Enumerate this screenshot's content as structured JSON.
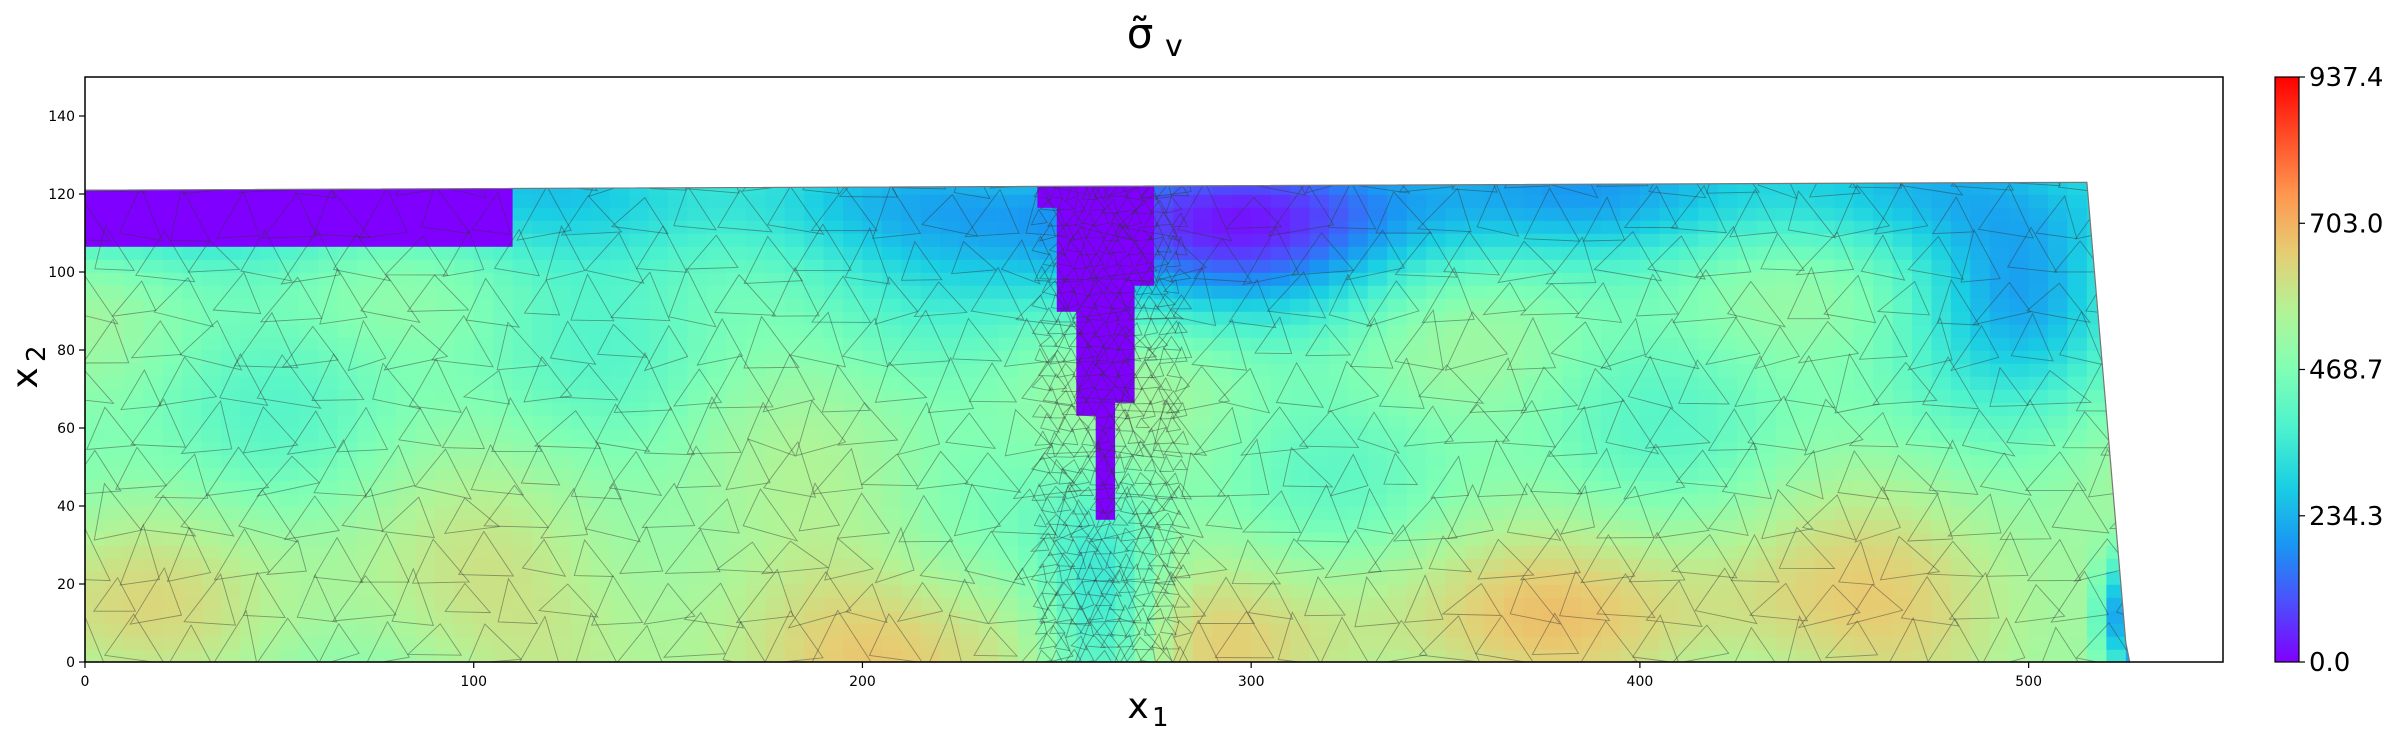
{
  "chart_data": {
    "type": "heatmap",
    "title": "σ̃",
    "title_subscript": "v",
    "xlabel": "x",
    "xlabel_subscript": "1",
    "ylabel": "x",
    "ylabel_subscript": "2",
    "xlim": [
      0,
      550
    ],
    "ylim": [
      0,
      150
    ],
    "x_ticks": [
      0,
      100,
      200,
      300,
      400,
      500
    ],
    "y_ticks": [
      0,
      20,
      40,
      60,
      80,
      100,
      120,
      140
    ],
    "colormap": "rainbow",
    "colorbar": {
      "min": 0.0,
      "max": 937.4,
      "tick_labels": [
        "0.0",
        "234.3",
        "468.7",
        "703.0",
        "937.4"
      ],
      "tick_values": [
        0.0,
        234.3,
        468.7,
        703.0,
        937.4
      ]
    },
    "domain_outline": [
      [
        0,
        121
      ],
      [
        515,
        123
      ],
      [
        525,
        5
      ],
      [
        526,
        0
      ],
      [
        0,
        0
      ]
    ],
    "notch": {
      "x_center": 262,
      "tip_y": 37,
      "top_y": 121,
      "half_width_top": 15
    },
    "mesh": "triangular finite-element mesh, refined along the notch and the top surface",
    "grid": false
  },
  "colors": {
    "rainbow": [
      "#8000ff",
      "#4d4efc",
      "#1996f3",
      "#1acfe3",
      "#4cf2ce",
      "#80ffb4",
      "#b3f396",
      "#e6cd73",
      "#ff964f",
      "#ff4d27",
      "#ff0000"
    ]
  }
}
